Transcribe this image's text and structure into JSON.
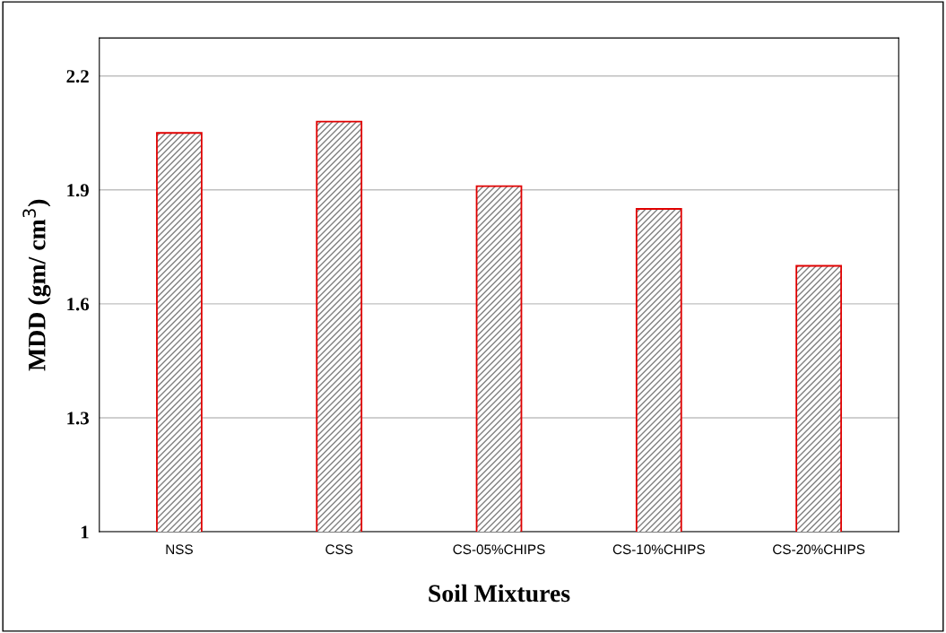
{
  "chart_data": {
    "type": "bar",
    "xlabel": "Soil Mixtures",
    "ylabel": "MDD (gm/ cm$^{3}$)",
    "categories": [
      "NSS",
      "CSS",
      "CS-05%CHIPS",
      "CS-10%CHIPS",
      "CS-20%CHIPS"
    ],
    "series": [
      {
        "color": "#e00000",
        "values": [
          2.05,
          2.08,
          1.91,
          1.85,
          1.7
        ]
      }
    ],
    "ylim": [
      1,
      2.3
    ],
    "yticks": [
      1,
      1.3,
      1.6,
      1.9,
      2.2
    ],
    "grid": "y"
  }
}
